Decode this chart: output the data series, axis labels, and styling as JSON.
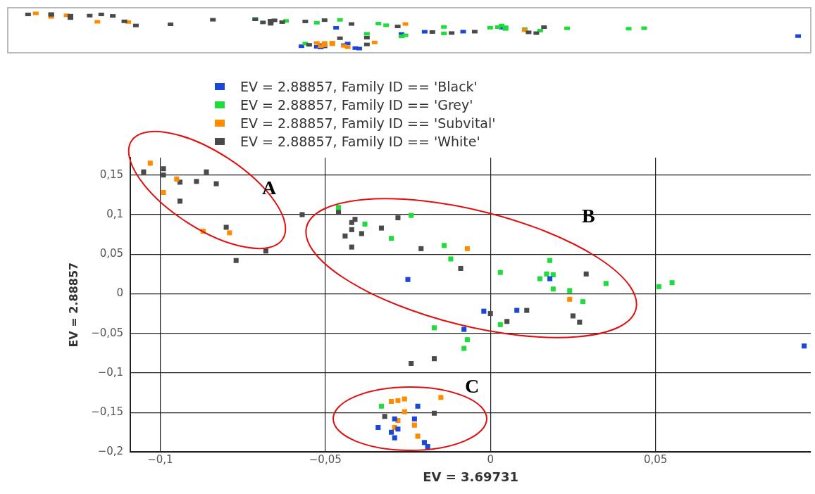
{
  "chart_data": {
    "type": "scatter",
    "xlabel": "EV = 3.69731",
    "ylabel": "EV = 2.88857",
    "xlim": [
      -0.109,
      0.097
    ],
    "ylim": [
      -0.2,
      0.172
    ],
    "grid": true,
    "legend": "top",
    "marker": "square",
    "xticks": [
      {
        "value": -0.1,
        "label": "−0,1"
      },
      {
        "value": -0.05,
        "label": "−0,05"
      },
      0,
      {
        "value": 0.05,
        "label": "0,05"
      }
    ],
    "yticks": [
      {
        "value": -0.2,
        "label": "−0,2"
      },
      {
        "value": -0.15,
        "label": "−0,15"
      },
      {
        "value": -0.1,
        "label": "−0,1"
      },
      {
        "value": -0.05,
        "label": "−0,05"
      },
      0,
      {
        "value": 0.05,
        "label": "0,05"
      },
      {
        "value": 0.1,
        "label": "0,1"
      },
      {
        "value": 0.15,
        "label": "0,15"
      }
    ],
    "annotations": [
      "A",
      "B",
      "C"
    ],
    "series": [
      {
        "name": "EV = 2.88857, Family ID == 'Black'",
        "color": "#1a47d8",
        "x": [
          -0.025,
          -0.002,
          0.008,
          -0.008,
          0.018,
          0.095,
          -0.022,
          -0.029,
          -0.023,
          -0.034,
          -0.028,
          -0.03,
          -0.029,
          -0.02,
          -0.019
        ],
        "values": [
          0.018,
          -0.022,
          -0.021,
          -0.045,
          0.019,
          -0.066,
          -0.142,
          -0.158,
          -0.158,
          -0.169,
          -0.171,
          -0.175,
          -0.182,
          -0.188,
          -0.193
        ]
      },
      {
        "name": "EV = 2.88857, Family ID == 'Grey'",
        "color": "#1fdc3c",
        "x": [
          -0.046,
          -0.038,
          -0.024,
          -0.03,
          -0.014,
          -0.012,
          0.003,
          0.003,
          -0.017,
          -0.007,
          -0.008,
          0.018,
          0.017,
          0.019,
          0.015,
          0.019,
          0.024,
          0.035,
          0.051,
          0.055,
          0.028,
          -0.033
        ],
        "values": [
          0.109,
          0.088,
          0.099,
          0.07,
          0.061,
          0.044,
          0.027,
          -0.039,
          -0.043,
          -0.058,
          -0.069,
          0.042,
          0.025,
          0.024,
          0.019,
          0.006,
          0.004,
          0.013,
          0.009,
          0.014,
          -0.01,
          -0.142
        ]
      },
      {
        "name": "EV = 2.88857, Family ID == 'Subvital'",
        "color": "#ff8c00",
        "x": [
          -0.103,
          -0.095,
          -0.099,
          -0.087,
          -0.079,
          -0.007,
          0.024,
          -0.03,
          -0.028,
          -0.026,
          -0.015,
          -0.026,
          -0.028,
          -0.023,
          -0.029,
          -0.022
        ],
        "values": [
          0.165,
          0.145,
          0.128,
          0.079,
          0.077,
          0.057,
          -0.007,
          -0.136,
          -0.135,
          -0.133,
          -0.131,
          -0.149,
          -0.16,
          -0.166,
          -0.169,
          -0.18
        ]
      },
      {
        "name": "EV = 2.88857, Family ID == 'White'",
        "color": "#4a4a4a",
        "x": [
          -0.105,
          -0.099,
          -0.099,
          -0.086,
          -0.094,
          -0.089,
          -0.083,
          -0.094,
          -0.057,
          -0.08,
          -0.068,
          -0.077,
          -0.046,
          -0.041,
          -0.042,
          -0.042,
          -0.039,
          -0.044,
          -0.042,
          -0.033,
          -0.028,
          -0.021,
          -0.009,
          0.0,
          0.005,
          -0.017,
          -0.024,
          0.029,
          0.011,
          0.025,
          0.027,
          -0.032,
          -0.017
        ],
        "values": [
          0.154,
          0.158,
          0.15,
          0.154,
          0.141,
          0.142,
          0.139,
          0.117,
          0.1,
          0.084,
          0.054,
          0.042,
          0.104,
          0.094,
          0.09,
          0.081,
          0.076,
          0.073,
          0.059,
          0.083,
          0.096,
          0.057,
          0.032,
          -0.025,
          -0.035,
          -0.082,
          -0.088,
          0.025,
          -0.021,
          -0.028,
          -0.036,
          -0.155,
          -0.151
        ]
      }
    ]
  }
}
